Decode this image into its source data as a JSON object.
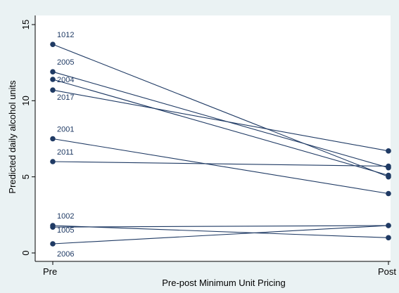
{
  "chart_data": {
    "type": "line",
    "categories": [
      "Pre",
      "Post"
    ],
    "xlabel": "Pre-post Minimum Unit Pricing",
    "ylabel": "Predicted daily alcohol units",
    "ylim": [
      0,
      15
    ],
    "yticks": [
      0,
      5,
      10,
      15
    ],
    "grid": false,
    "colors": {
      "line": "#1f3a64",
      "background": "#eaf2f3",
      "plot_background": "#ffffff"
    },
    "series": [
      {
        "name": "1012",
        "values": [
          13.7,
          5.0
        ]
      },
      {
        "name": "2005",
        "values": [
          11.9,
          5.6
        ]
      },
      {
        "name": "2004",
        "values": [
          11.4,
          5.1
        ]
      },
      {
        "name": "2017",
        "values": [
          10.7,
          6.7
        ]
      },
      {
        "name": "2001",
        "values": [
          7.5,
          3.9
        ]
      },
      {
        "name": "2011",
        "values": [
          6.0,
          5.7
        ]
      },
      {
        "name": "1002",
        "values": [
          1.8,
          1.0
        ]
      },
      {
        "name": "1005",
        "values": [
          1.7,
          1.8
        ]
      },
      {
        "name": "2006",
        "values": [
          0.6,
          1.8
        ]
      }
    ]
  }
}
